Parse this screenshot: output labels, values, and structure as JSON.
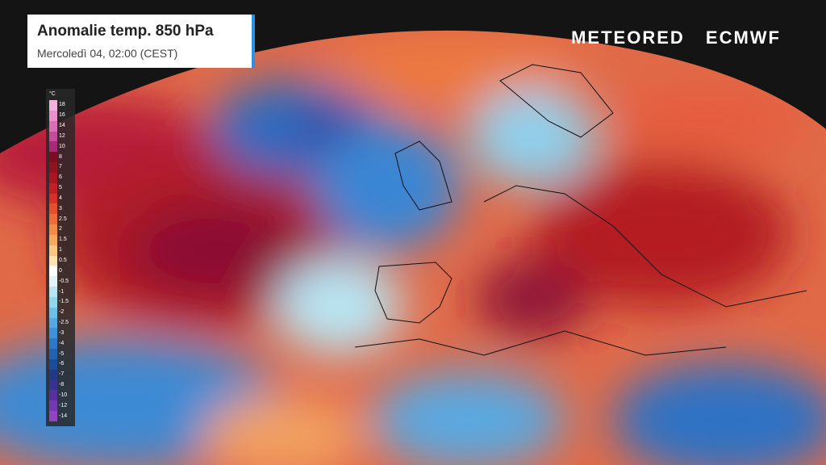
{
  "header": {
    "title": "Anomalie temp. 850 hPa",
    "subtitle": "Mercoledì 04, 02:00 (CEST)"
  },
  "logos": {
    "brand": "METEORED",
    "partner": "ECMWF"
  },
  "legend": {
    "unit": "°C",
    "labels": [
      18,
      16,
      14,
      12,
      10,
      8,
      7,
      6,
      5,
      4,
      3,
      2.5,
      2,
      1.5,
      1,
      0.5,
      0,
      -0.5,
      -1,
      -1.5,
      -2,
      -2.5,
      -3,
      -4,
      -5,
      -6,
      -7,
      -8,
      -10,
      -12,
      -14
    ],
    "colors": [
      "#f3b2da",
      "#e890cb",
      "#d870b8",
      "#c44c9c",
      "#a8287a",
      "#7e0c22",
      "#93121f",
      "#a8161f",
      "#c01f25",
      "#d6322a",
      "#e4502f",
      "#ee6c38",
      "#f38a48",
      "#f7a860",
      "#fac684",
      "#fde3b4",
      "#ffffff",
      "#dff3f8",
      "#b7e6f2",
      "#8fd6ee",
      "#6fc0e8",
      "#57a8e0",
      "#4290d6",
      "#3078c6",
      "#2262b0",
      "#1a4c9a",
      "#213a88",
      "#3a3090",
      "#5830a0",
      "#7638b0",
      "#9244c4"
    ]
  }
}
